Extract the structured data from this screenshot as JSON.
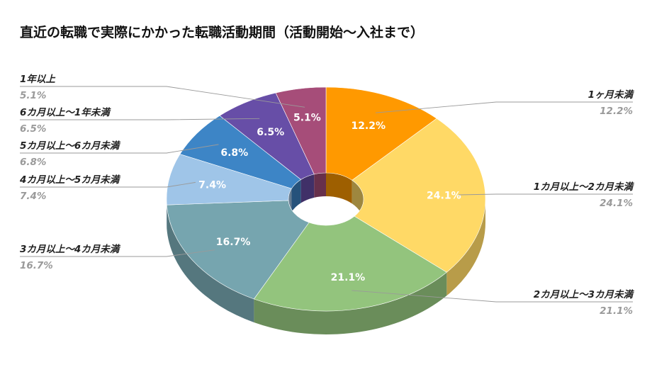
{
  "chart_data": {
    "type": "pie",
    "title": "直近の転職で実際にかかった転職活動期間（活動開始〜入社まで）",
    "categories": [
      "1ヶ月未満",
      "1カ月以上～2カ月未満",
      "2カ月以上～3カ月未満",
      "3カ月以上～4カ月未満",
      "4カ月以上～5カ月未満",
      "5カ月以上～6カ月未満",
      "6カ月以上～1年未満",
      "1年以上"
    ],
    "values": [
      12.2,
      24.1,
      21.1,
      16.7,
      7.4,
      6.8,
      6.5,
      5.1
    ],
    "value_labels": [
      "12.2%",
      "24.1%",
      "21.1%",
      "16.7%",
      "7.4%",
      "6.8%",
      "6.5%",
      "5.1%"
    ],
    "colors": [
      "#FF9900",
      "#FFD966",
      "#93C47D",
      "#76A5AF",
      "#9FC5E8",
      "#3D85C6",
      "#674EA7",
      "#A64D79"
    ],
    "style": "3d-donut",
    "legend": "labels-with-leader-lines"
  }
}
